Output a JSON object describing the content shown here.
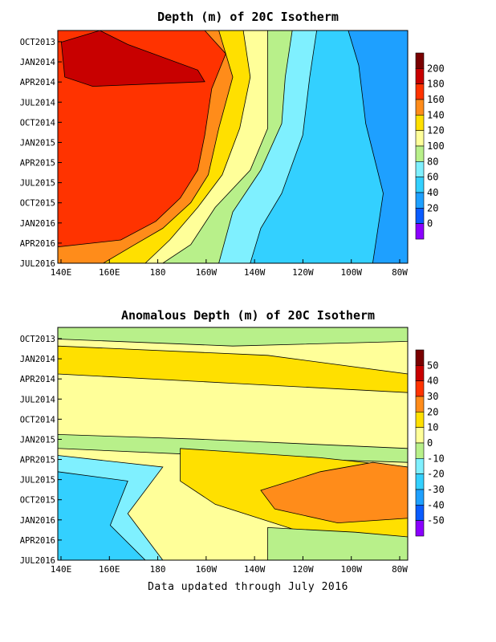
{
  "chart_data": [
    {
      "type": "heatmap",
      "title": "Depth (m) of 20C Isotherm",
      "xlabel": "",
      "ylabel": "",
      "x_ticks": [
        "140E",
        "160E",
        "180",
        "160W",
        "140W",
        "120W",
        "100W",
        "80W"
      ],
      "x_values": [
        140,
        160,
        180,
        200,
        220,
        240,
        260,
        280
      ],
      "y_ticks": [
        "OCT2013",
        "JAN2014",
        "APR2014",
        "JUL2014",
        "OCT2014",
        "JAN2015",
        "APR2015",
        "JUL2015",
        "OCT2015",
        "JAN2016",
        "APR2016",
        "JUL2016"
      ],
      "colorbar_labels": [
        "200",
        "180",
        "160",
        "140",
        "120",
        "100",
        "80",
        "60",
        "40",
        "20",
        "0"
      ],
      "colorbar_values": [
        200,
        180,
        160,
        140,
        120,
        100,
        80,
        60,
        40,
        20,
        0
      ],
      "colorbar_colors": [
        "#7a0000",
        "#c80000",
        "#ff3300",
        "#ff8c1a",
        "#ffe000",
        "#ffff99",
        "#b8f08a",
        "#7ff0ff",
        "#33d0ff",
        "#1ea0ff",
        "#0a5cff",
        "#8b00ff"
      ]
    },
    {
      "type": "heatmap",
      "title": "Anomalous Depth (m) of 20C Isotherm",
      "xlabel": "",
      "ylabel": "",
      "x_ticks": [
        "140E",
        "160E",
        "180",
        "160W",
        "140W",
        "120W",
        "100W",
        "80W"
      ],
      "x_values": [
        140,
        160,
        180,
        200,
        220,
        240,
        260,
        280
      ],
      "y_ticks": [
        "OCT2013",
        "JAN2014",
        "APR2014",
        "JUL2014",
        "OCT2014",
        "JAN2015",
        "APR2015",
        "JUL2015",
        "OCT2015",
        "JAN2016",
        "APR2016",
        "JUL2016"
      ],
      "colorbar_labels": [
        "50",
        "40",
        "30",
        "20",
        "10",
        "0",
        "-10",
        "-20",
        "-30",
        "-40",
        "-50"
      ],
      "colorbar_values": [
        50,
        40,
        30,
        20,
        10,
        0,
        -10,
        -20,
        -30,
        -40,
        -50
      ],
      "colorbar_colors": [
        "#7a0000",
        "#c80000",
        "#ff3300",
        "#ff8c1a",
        "#ffe000",
        "#ffff99",
        "#b8f08a",
        "#7ff0ff",
        "#33d0ff",
        "#1ea0ff",
        "#0a5cff",
        "#8b00ff"
      ]
    }
  ],
  "footer": "Data updated through July 2016"
}
